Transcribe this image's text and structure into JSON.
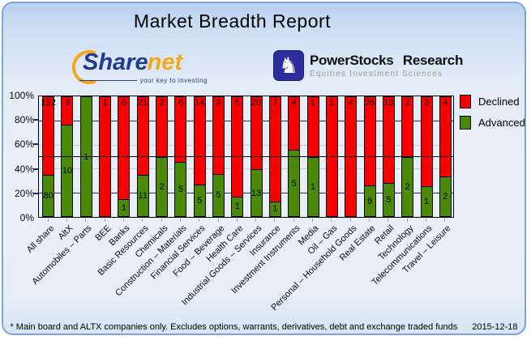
{
  "title": "Market Breadth Report",
  "logos": {
    "sharenet": {
      "name_primary": "Share",
      "name_secondary": "net",
      "tagline": "your key to investing",
      "accent_color": "#f2a818",
      "text_color": "#1d3c8f"
    },
    "powerstocks": {
      "name": "PowerStocks Research",
      "tagline": "Equities Investment Sciences",
      "knight_icon": "♞",
      "box_color": "#2d2d9e"
    }
  },
  "footer": {
    "note": "* Main board and ALTX companies only. Excludes options, warrants, derivatives, debt and exchange traded funds",
    "date": "2015-12-18"
  },
  "chart_data": {
    "type": "bar",
    "stacked": true,
    "normalized_to_100pct": true,
    "title": "",
    "xlabel": "",
    "ylabel": "",
    "ylim": [
      0,
      100
    ],
    "y_ticks": [
      "0%",
      "20%",
      "40%",
      "60%",
      "80%",
      "100%"
    ],
    "reference_line_pct": 50,
    "grid": true,
    "legend_position": "top-right",
    "categories": [
      "All share",
      "AltX",
      "Automobiles – Parts",
      "BEE",
      "Banks",
      "Basic Resources",
      "Chemicals",
      "Construction – Materials",
      "Financial Services",
      "Food – Beverage",
      "Health Care",
      "Industrial Goods – Services",
      "Insurance",
      "Investment Instruments",
      "Media",
      "Oil – Gas",
      "Personal – Household Goods",
      "Real Estate",
      "Retail",
      "Technology",
      "Telecommunications",
      "Travel – Leisure"
    ],
    "series": [
      {
        "name": "Declined",
        "color": "#fa0000",
        "values": [
          152,
          3,
          0,
          1,
          6,
          21,
          2,
          6,
          14,
          9,
          5,
          20,
          7,
          4,
          1,
          1,
          4,
          26,
          13,
          2,
          3,
          4
        ]
      },
      {
        "name": "Advanced",
        "color": "#4a8a08",
        "values": [
          80,
          10,
          1,
          0,
          1,
          11,
          2,
          5,
          5,
          5,
          1,
          13,
          1,
          5,
          1,
          0,
          0,
          9,
          5,
          2,
          1,
          2
        ]
      }
    ]
  }
}
